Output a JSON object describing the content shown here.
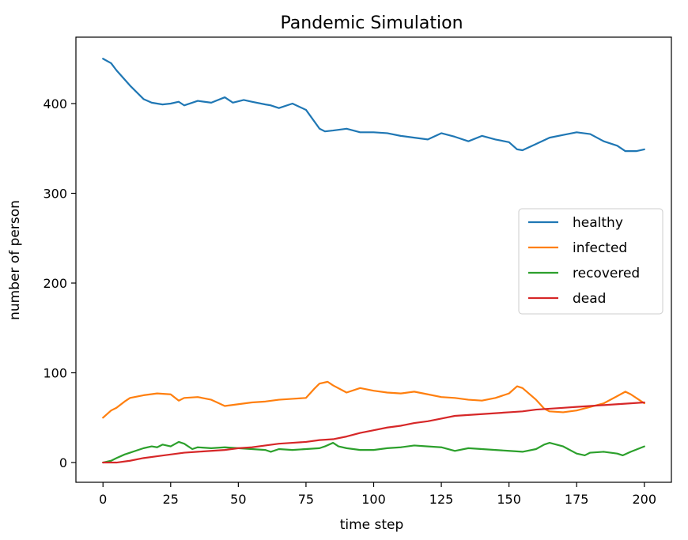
{
  "chart_data": {
    "type": "line",
    "title": "Pandemic Simulation",
    "xlabel": "time step",
    "ylabel": "number of person",
    "xlim": [
      -10,
      210
    ],
    "ylim": [
      -22,
      474
    ],
    "xticks": [
      0,
      25,
      50,
      75,
      100,
      125,
      150,
      175,
      200
    ],
    "yticks": [
      0,
      100,
      200,
      300,
      400
    ],
    "grid": false,
    "legend": "center-right",
    "series": [
      {
        "name": "healthy",
        "color": "#1f77b4",
        "x": [
          0,
          3,
          5,
          10,
          15,
          18,
          22,
          25,
          28,
          30,
          35,
          40,
          45,
          48,
          52,
          55,
          60,
          62,
          65,
          70,
          75,
          80,
          82,
          85,
          90,
          95,
          100,
          105,
          110,
          115,
          120,
          125,
          130,
          135,
          140,
          145,
          150,
          153,
          155,
          160,
          165,
          170,
          175,
          180,
          185,
          190,
          193,
          197,
          200
        ],
        "y": [
          450,
          445,
          437,
          420,
          405,
          401,
          399,
          400,
          402,
          398,
          403,
          401,
          407,
          401,
          404,
          402,
          399,
          398,
          395,
          400,
          393,
          372,
          369,
          370,
          372,
          368,
          368,
          367,
          364,
          362,
          360,
          367,
          363,
          358,
          364,
          360,
          357,
          349,
          348,
          355,
          362,
          365,
          368,
          366,
          358,
          353,
          347,
          347,
          349
        ]
      },
      {
        "name": "infected",
        "color": "#ff7f0e",
        "x": [
          0,
          3,
          5,
          8,
          10,
          15,
          20,
          25,
          28,
          30,
          35,
          40,
          45,
          50,
          55,
          60,
          65,
          70,
          75,
          78,
          80,
          83,
          85,
          90,
          95,
          100,
          105,
          110,
          115,
          120,
          125,
          130,
          135,
          140,
          145,
          150,
          153,
          155,
          160,
          163,
          165,
          170,
          175,
          180,
          185,
          190,
          193,
          195,
          198,
          200
        ],
        "y": [
          50,
          58,
          61,
          68,
          72,
          75,
          77,
          76,
          69,
          72,
          73,
          70,
          63,
          65,
          67,
          68,
          70,
          71,
          72,
          82,
          88,
          90,
          86,
          78,
          83,
          80,
          78,
          77,
          79,
          76,
          73,
          72,
          70,
          69,
          72,
          77,
          85,
          83,
          70,
          60,
          57,
          56,
          58,
          62,
          66,
          74,
          79,
          76,
          70,
          66
        ]
      },
      {
        "name": "recovered",
        "color": "#2ca02c",
        "x": [
          0,
          3,
          5,
          8,
          10,
          13,
          15,
          18,
          20,
          22,
          25,
          28,
          30,
          33,
          35,
          40,
          45,
          50,
          55,
          60,
          62,
          65,
          70,
          75,
          80,
          82,
          85,
          87,
          90,
          95,
          100,
          105,
          110,
          115,
          120,
          125,
          130,
          135,
          140,
          145,
          150,
          155,
          160,
          163,
          165,
          170,
          175,
          178,
          180,
          185,
          190,
          192,
          195,
          200
        ],
        "y": [
          0,
          2,
          5,
          9,
          11,
          14,
          16,
          18,
          17,
          20,
          18,
          23,
          21,
          15,
          17,
          16,
          17,
          16,
          15,
          14,
          12,
          15,
          14,
          15,
          16,
          18,
          22,
          18,
          16,
          14,
          14,
          16,
          17,
          19,
          18,
          17,
          13,
          16,
          15,
          14,
          13,
          12,
          15,
          20,
          22,
          18,
          10,
          8,
          11,
          12,
          10,
          8,
          12,
          18
        ]
      },
      {
        "name": "dead",
        "color": "#d62728",
        "x": [
          0,
          5,
          10,
          15,
          20,
          25,
          30,
          35,
          40,
          45,
          50,
          55,
          60,
          65,
          70,
          75,
          80,
          85,
          90,
          95,
          100,
          105,
          110,
          115,
          120,
          125,
          130,
          135,
          140,
          145,
          150,
          155,
          160,
          165,
          170,
          175,
          180,
          185,
          190,
          195,
          200
        ],
        "y": [
          0,
          0,
          2,
          5,
          7,
          9,
          11,
          12,
          13,
          14,
          16,
          17,
          19,
          21,
          22,
          23,
          25,
          26,
          29,
          33,
          36,
          39,
          41,
          44,
          46,
          49,
          52,
          53,
          54,
          55,
          56,
          57,
          59,
          60,
          61,
          62,
          63,
          64,
          65,
          66,
          67
        ]
      }
    ]
  }
}
